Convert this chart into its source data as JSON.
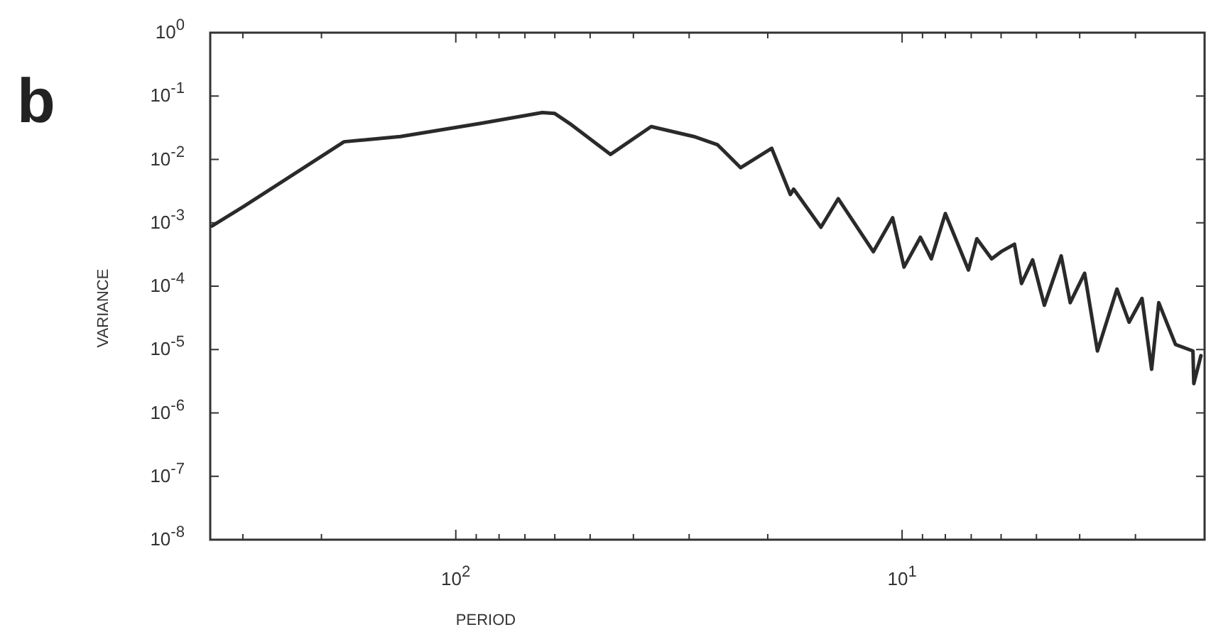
{
  "chart_data": {
    "type": "line",
    "xlabel": "PERIOD",
    "ylabel": "VARIANCE",
    "annotations": [
      "b"
    ],
    "log": "xy",
    "grid": false,
    "marker": "none",
    "line_style": "solid",
    "xlim": [
      355,
      2.1
    ],
    "ylim": [
      1e-08,
      1
    ],
    "xticks": [
      {
        "value": 300,
        "label": null
      },
      {
        "value": 200,
        "label": null
      },
      {
        "value": 100,
        "label": "10$^{2}$"
      },
      {
        "value": 90,
        "label": null
      },
      {
        "value": 80,
        "label": null
      },
      {
        "value": 70,
        "label": null
      },
      {
        "value": 60,
        "label": null
      },
      {
        "value": 50,
        "label": null
      },
      {
        "value": 40,
        "label": null
      },
      {
        "value": 30,
        "label": null
      },
      {
        "value": 20,
        "label": null
      },
      {
        "value": 10,
        "label": "10$^{1}$"
      },
      {
        "value": 9,
        "label": null
      },
      {
        "value": 8,
        "label": null
      },
      {
        "value": 7,
        "label": null
      },
      {
        "value": 6,
        "label": null
      },
      {
        "value": 5,
        "label": null
      },
      {
        "value": 4,
        "label": null
      },
      {
        "value": 3,
        "label": null
      }
    ],
    "yticks": [
      {
        "value": 1,
        "label": "10$^{0}$"
      },
      {
        "value": 0.1,
        "label": "10$^{-1}$"
      },
      {
        "value": 0.01,
        "label": "10$^{-2}$"
      },
      {
        "value": 0.001,
        "label": "10$^{-3}$"
      },
      {
        "value": 0.0001,
        "label": "10$^{-4}$"
      },
      {
        "value": 1e-05,
        "label": "10$^{-5}$"
      },
      {
        "value": 1e-06,
        "label": "10$^{-6}$"
      },
      {
        "value": 1e-07,
        "label": "10$^{-7}$"
      },
      {
        "value": 1e-08,
        "label": "10$^{-8}$"
      }
    ],
    "series": [
      {
        "color": "#2a2a2a",
        "x": [
          352,
          299,
          178,
          133,
          88,
          64,
          60,
          55,
          45,
          36.5,
          29.3,
          25.9,
          23,
          19.6,
          17.8,
          17.5,
          15.2,
          13.9,
          11.6,
          10.5,
          9.9,
          9.1,
          8.6,
          8.0,
          7.1,
          6.8,
          6.3,
          6.0,
          5.6,
          5.4,
          5.1,
          4.8,
          4.4,
          4.2,
          3.9,
          3.65,
          3.3,
          3.1,
          2.9,
          2.76,
          2.66,
          2.44,
          2.23,
          2.22,
          2.14
        ],
        "values": [
          0.00089,
          0.0018,
          0.019,
          0.023,
          0.037,
          0.055,
          0.053,
          0.035,
          0.012,
          0.033,
          0.023,
          0.017,
          0.0074,
          0.015,
          0.0028,
          0.0034,
          0.00085,
          0.0024,
          0.00035,
          0.0012,
          0.0002,
          0.00059,
          0.00027,
          0.0014,
          0.00018,
          0.00056,
          0.00027,
          0.00035,
          0.00046,
          0.00011,
          0.00026,
          5e-05,
          0.0003,
          5.5e-05,
          0.00016,
          9.5e-06,
          9e-05,
          2.7e-05,
          6.4e-05,
          4.9e-06,
          5.5e-05,
          1.2e-05,
          9.5e-06,
          2.9e-06,
          8e-06
        ]
      }
    ]
  }
}
